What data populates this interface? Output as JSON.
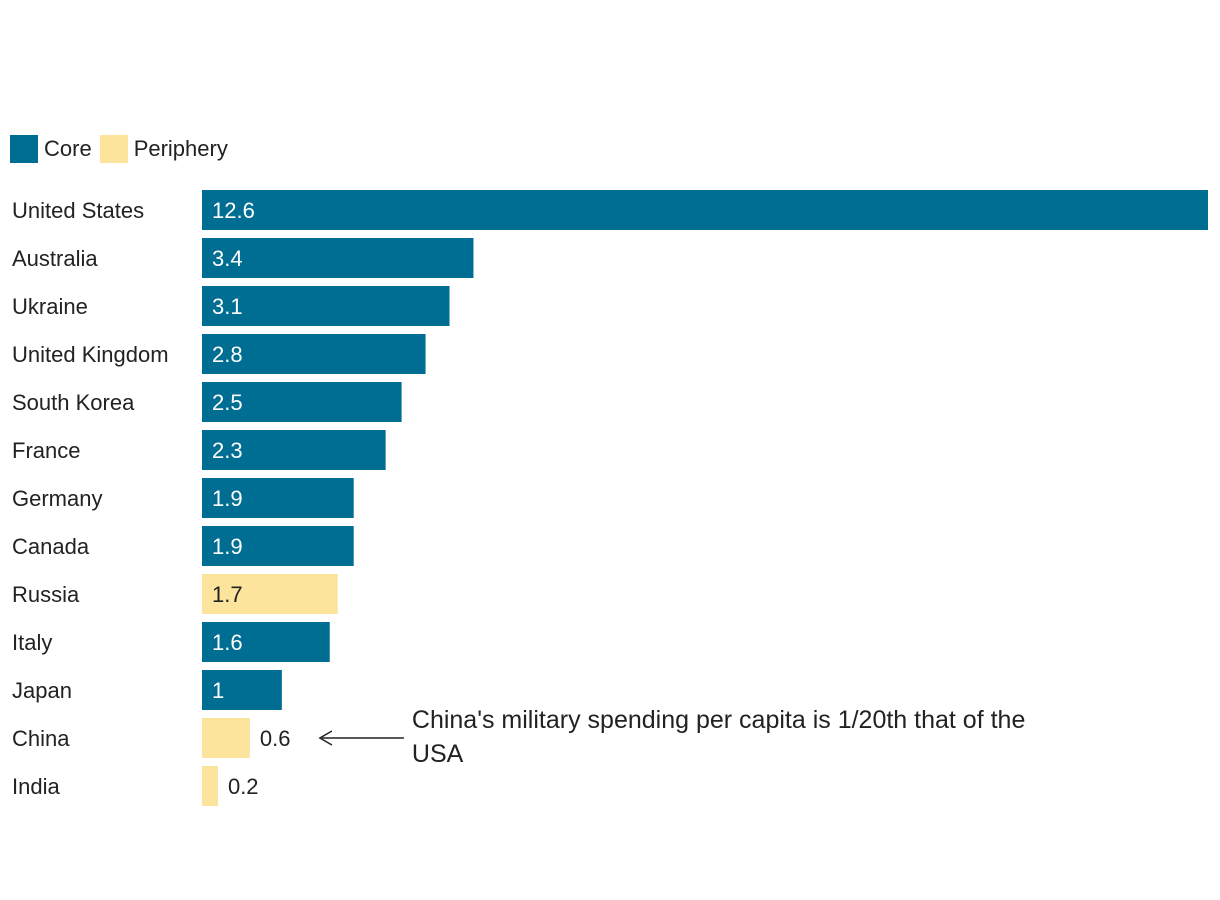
{
  "colors": {
    "core": "#006d92",
    "periphery": "#fde49c"
  },
  "legend": {
    "items": [
      {
        "label": "Core",
        "group": "core"
      },
      {
        "label": "Periphery",
        "group": "periphery"
      }
    ]
  },
  "chart_data": {
    "type": "bar",
    "orientation": "horizontal",
    "categories": [
      "United States",
      "Australia",
      "Ukraine",
      "United Kingdom",
      "South Korea",
      "France",
      "Germany",
      "Canada",
      "Russia",
      "Italy",
      "Japan",
      "China",
      "India"
    ],
    "values": [
      12.6,
      3.4,
      3.1,
      2.8,
      2.5,
      2.3,
      1.9,
      1.9,
      1.7,
      1.6,
      1,
      0.6,
      0.2
    ],
    "value_labels": [
      "12.6",
      "3.4",
      "3.1",
      "2.8",
      "2.5",
      "2.3",
      "1.9",
      "1.9",
      "1.7",
      "1.6",
      "1",
      "0.6",
      "0.2"
    ],
    "groups": [
      "core",
      "core",
      "core",
      "core",
      "core",
      "core",
      "core",
      "core",
      "periphery",
      "core",
      "core",
      "periphery",
      "periphery"
    ],
    "xlim": [
      0,
      12.6
    ],
    "grid": false,
    "legend_position": "top-left",
    "annotation": {
      "target": "China",
      "lines": [
        "China's military spending per capita is 1/20th that of the",
        "USA"
      ]
    }
  }
}
